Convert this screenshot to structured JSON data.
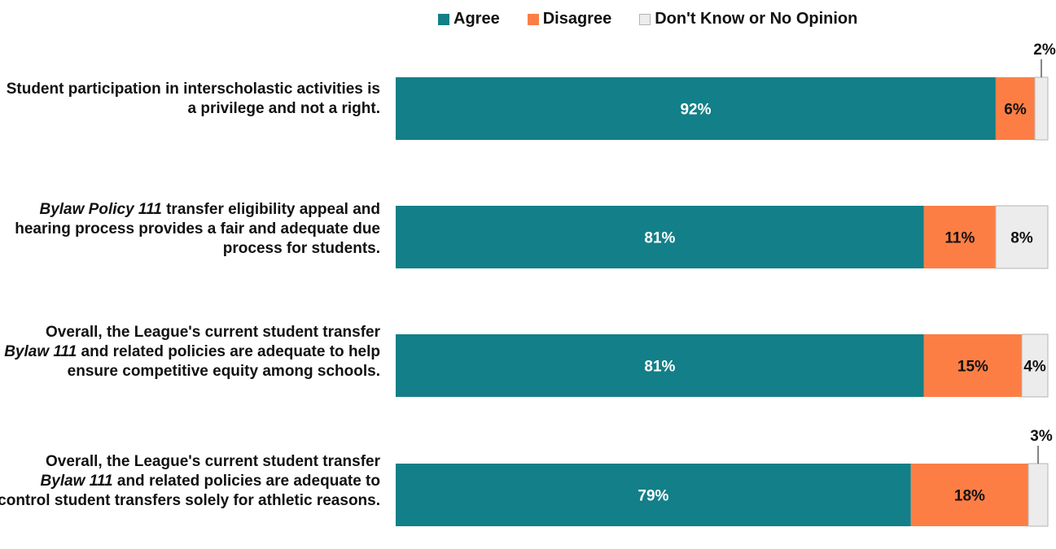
{
  "chart_data": {
    "type": "bar",
    "orientation": "horizontal",
    "stacked": true,
    "legend_position": "top",
    "categories": [
      [
        {
          "t": "Student participation in interscholastic activities is a privilege and not a right.",
          "i": false
        }
      ],
      [
        {
          "t": "Bylaw Policy 111",
          "i": true
        },
        {
          "t": " transfer eligibility appeal and hearing process provides a fair and adequate due process for students.",
          "i": false
        }
      ],
      [
        {
          "t": "Overall, the League's current student transfer ",
          "i": false
        },
        {
          "t": "Bylaw 111",
          "i": true
        },
        {
          "t": " and related policies are adequate to help ensure competitive equity among schools.",
          "i": false
        }
      ],
      [
        {
          "t": "Overall, the League's current student transfer ",
          "i": false
        },
        {
          "t": "Bylaw 111",
          "i": true
        },
        {
          "t": " and related policies are adequate to control student transfers solely for athletic reasons.",
          "i": false
        }
      ]
    ],
    "series": [
      {
        "name": "Agree",
        "color": "#137f88",
        "label_color": "#ffffff",
        "values": [
          92,
          81,
          81,
          79
        ],
        "labels": [
          "92%",
          "81%",
          "81%",
          "79%"
        ]
      },
      {
        "name": "Disagree",
        "color": "#fd7e45",
        "label_color": "#111111",
        "values": [
          6,
          11,
          15,
          18
        ],
        "labels": [
          "6%",
          "11%",
          "15%",
          "18%"
        ]
      },
      {
        "name": "Don't Know or No Opinion",
        "color": "#ececec",
        "border": "#b5b5b5",
        "label_color": "#111111",
        "values": [
          2,
          8,
          4,
          3
        ],
        "labels": [
          "2%",
          "8%",
          "4%",
          "3%"
        ]
      }
    ],
    "xlim": [
      0,
      100
    ]
  }
}
